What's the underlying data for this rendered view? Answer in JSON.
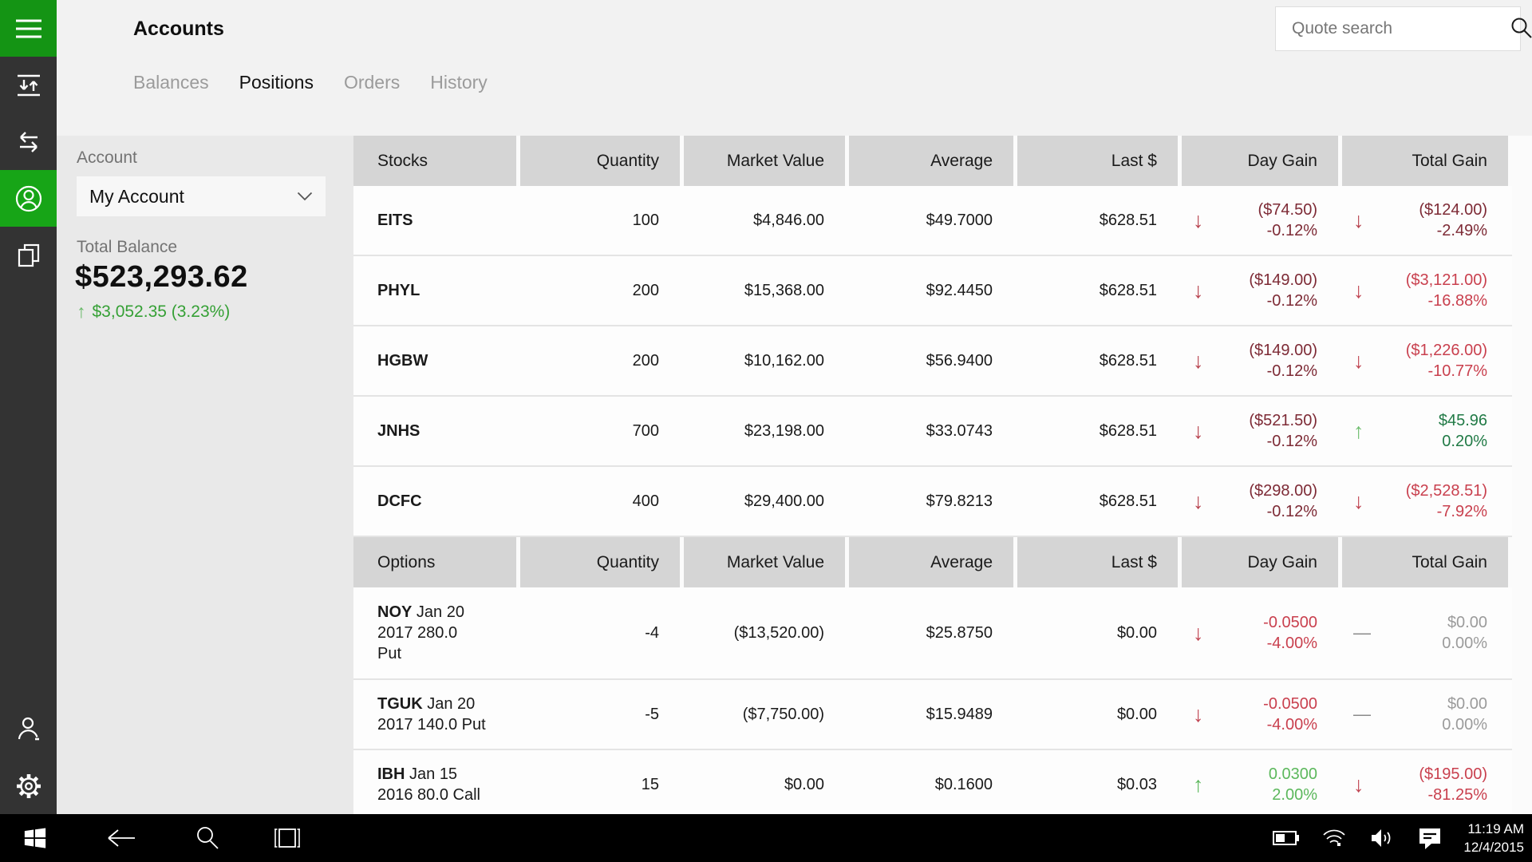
{
  "app": {
    "title": "Accounts"
  },
  "tabs": [
    {
      "label": "Balances"
    },
    {
      "label": "Positions"
    },
    {
      "label": "Orders"
    },
    {
      "label": "History"
    }
  ],
  "search": {
    "placeholder": "Quote search"
  },
  "account_panel": {
    "label": "Account",
    "selected_account": "My Account",
    "balance_label": "Total Balance",
    "balance": "$523,293.62",
    "change_arrow": "↑",
    "change": "$3,052.35 (3.23%)"
  },
  "stocks_table": {
    "headers": [
      "Stocks",
      "Quantity",
      "Market Value",
      "Average",
      "Last $",
      "Day Gain",
      "Total Gain"
    ],
    "rows": [
      {
        "symbol": "EITS",
        "desc": "",
        "quantity": "100",
        "market_value": "$4,846.00",
        "average": "$49.7000",
        "last": "$628.51",
        "day": {
          "arrow": "↓",
          "value": "($74.50)",
          "pct": "-0.12%",
          "tone": "neg-dark"
        },
        "total": {
          "arrow": "↓",
          "value": "($124.00)",
          "pct": "-2.49%",
          "tone": "neg-dark"
        }
      },
      {
        "symbol": "PHYL",
        "desc": "",
        "quantity": "200",
        "market_value": "$15,368.00",
        "average": "$92.4450",
        "last": "$628.51",
        "day": {
          "arrow": "↓",
          "value": "($149.00)",
          "pct": "-0.12%",
          "tone": "neg-dark"
        },
        "total": {
          "arrow": "↓",
          "value": "($3,121.00)",
          "pct": "-16.88%",
          "tone": "neg"
        }
      },
      {
        "symbol": "HGBW",
        "desc": "",
        "quantity": "200",
        "market_value": "$10,162.00",
        "average": "$56.9400",
        "last": "$628.51",
        "day": {
          "arrow": "↓",
          "value": "($149.00)",
          "pct": "-0.12%",
          "tone": "neg-dark"
        },
        "total": {
          "arrow": "↓",
          "value": "($1,226.00)",
          "pct": "-10.77%",
          "tone": "neg"
        }
      },
      {
        "symbol": "JNHS",
        "desc": "",
        "quantity": "700",
        "market_value": "$23,198.00",
        "average": "$33.0743",
        "last": "$628.51",
        "day": {
          "arrow": "↓",
          "value": "($521.50)",
          "pct": "-0.12%",
          "tone": "neg-dark"
        },
        "total": {
          "arrow": "↑",
          "value": "$45.96",
          "pct": "0.20%",
          "tone": "pos-dark"
        }
      },
      {
        "symbol": "DCFC",
        "desc": "",
        "quantity": "400",
        "market_value": "$29,400.00",
        "average": "$79.8213",
        "last": "$628.51",
        "day": {
          "arrow": "↓",
          "value": "($298.00)",
          "pct": "-0.12%",
          "tone": "neg-dark"
        },
        "total": {
          "arrow": "↓",
          "value": "($2,528.51)",
          "pct": "-7.92%",
          "tone": "neg"
        }
      }
    ]
  },
  "options_table": {
    "headers": [
      "Options",
      "Quantity",
      "Market Value",
      "Average",
      "Last $",
      "Day Gain",
      "Total Gain"
    ],
    "rows": [
      {
        "symbol": "NOY",
        "desc": " Jan 20\n2017 280.0\nPut",
        "quantity": "-4",
        "market_value": "($13,520.00)",
        "average": "$25.8750",
        "last": "$0.00",
        "day": {
          "arrow": "↓",
          "value": "-0.0500",
          "pct": "-4.00%",
          "tone": "neg"
        },
        "total": {
          "arrow": "—",
          "value": "$0.00",
          "pct": "0.00%",
          "tone": "neutral"
        }
      },
      {
        "symbol": "TGUK",
        "desc": " Jan 20\n2017 140.0 Put",
        "quantity": "-5",
        "market_value": "($7,750.00)",
        "average": "$15.9489",
        "last": "$0.00",
        "day": {
          "arrow": "↓",
          "value": "-0.0500",
          "pct": "-4.00%",
          "tone": "neg"
        },
        "total": {
          "arrow": "—",
          "value": "$0.00",
          "pct": "0.00%",
          "tone": "neutral"
        }
      },
      {
        "symbol": "IBH",
        "desc": " Jan 15\n2016 80.0 Call",
        "quantity": "15",
        "market_value": "$0.00",
        "average": "$0.1600",
        "last": "$0.03",
        "day": {
          "arrow": "↑",
          "value": "0.0300",
          "pct": "2.00%",
          "tone": "pos"
        },
        "total": {
          "arrow": "↓",
          "value": "($195.00)",
          "pct": "-81.25%",
          "tone": "neg"
        }
      }
    ]
  },
  "taskbar": {
    "time": "11:19 AM",
    "date": "12/4/2015"
  },
  "colors": {
    "accent_green": "#149414",
    "active_green": "#17a517",
    "negative": "#c9404e",
    "negative_dark": "#7d2a35",
    "positive": "#5cb85c",
    "positive_dark": "#217a46"
  }
}
